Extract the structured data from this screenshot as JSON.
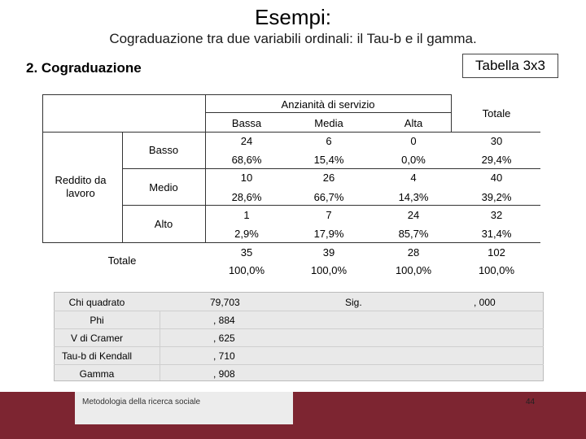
{
  "slide": {
    "title": "Esempi:",
    "subtitle": "Cograduazione tra due variabili ordinali: il Tau-b e il gamma.",
    "section": "2.  Cograduazione",
    "table_tag": "Tabella 3x3"
  },
  "table": {
    "column_group": "Anzianità di servizio",
    "columns": [
      "Bassa",
      "Media",
      "Alta"
    ],
    "total_label": "Totale",
    "row_group": "Reddito da lavoro",
    "rows": [
      {
        "label": "Basso",
        "counts": [
          "24",
          "6",
          "0",
          "30"
        ],
        "pcts": [
          "68,6%",
          "15,4%",
          "0,0%",
          "29,4%"
        ]
      },
      {
        "label": "Medio",
        "counts": [
          "10",
          "26",
          "4",
          "40"
        ],
        "pcts": [
          "28,6%",
          "66,7%",
          "14,3%",
          "39,2%"
        ]
      },
      {
        "label": "Alto",
        "counts": [
          "1",
          "7",
          "24",
          "32"
        ],
        "pcts": [
          "2,9%",
          "17,9%",
          "85,7%",
          "31,4%"
        ]
      }
    ],
    "total_row": {
      "counts": [
        "35",
        "39",
        "28",
        "102"
      ],
      "pcts": [
        "100,0%",
        "100,0%",
        "100,0%",
        "100,0%"
      ]
    }
  },
  "stats": {
    "chi_label": "Chi quadrato",
    "chi_value": "79,703",
    "sig_label": "Sig.",
    "sig_value": ", 000",
    "phi_label": "Phi",
    "phi_value": ", 884",
    "cramer_label": "V di Cramer",
    "cramer_value": ", 625",
    "tau_label": "Tau-b di Kendall",
    "tau_value": ", 710",
    "gamma_label": "Gamma",
    "gamma_value": ", 908"
  },
  "footer": {
    "text": "Metodologia della ricerca sociale",
    "page": "44"
  }
}
